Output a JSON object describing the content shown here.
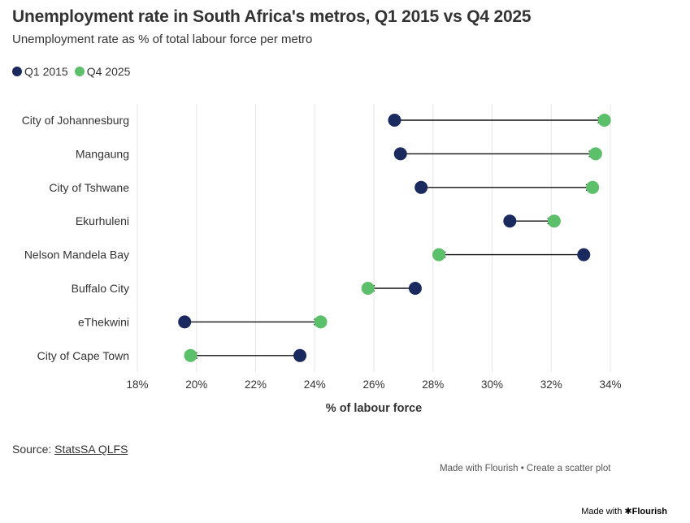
{
  "title": "Unemployment rate in South Africa's metros, Q1 2015 vs Q4 2025",
  "subtitle": "Unemployment rate as % of total labour force per metro",
  "source_prefix": "Source: ",
  "source_link": "StatsSA QLFS",
  "made_with": "Made with Flourish • Create a scatter plot",
  "badge_prefix": "Made with",
  "badge_brand": "✱Flourish",
  "colors": {
    "q1_2015": "#1a2a5e",
    "q4_2025": "#5cbf6a",
    "grid": "#e6e6e6",
    "arrow": "#111111"
  },
  "chart_data": {
    "type": "scatter",
    "xlabel": "% of labour force",
    "xlim": [
      18,
      34
    ],
    "xticks": [
      "18%",
      "20%",
      "22%",
      "24%",
      "26%",
      "28%",
      "30%",
      "32%",
      "34%"
    ],
    "legend_position": "top-left",
    "categories": [
      "City of Johannesburg",
      "Mangaung",
      "City of Tshwane",
      "Ekurhuleni",
      "Nelson Mandela Bay",
      "Buffalo City",
      "eThekwini",
      "City of Cape Town"
    ],
    "series": [
      {
        "name": "Q1 2015",
        "values": [
          26.7,
          26.9,
          27.6,
          30.6,
          33.1,
          27.4,
          19.6,
          23.5
        ]
      },
      {
        "name": "Q4 2025",
        "values": [
          33.8,
          33.5,
          33.4,
          32.1,
          28.2,
          25.8,
          24.2,
          19.8
        ]
      }
    ]
  }
}
